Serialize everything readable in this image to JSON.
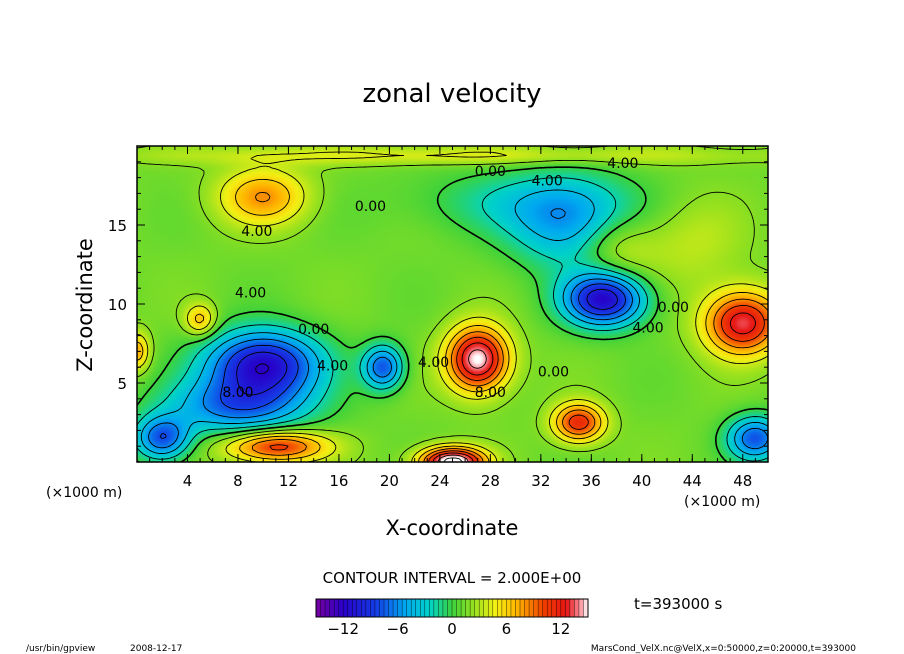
{
  "chart_data": {
    "type": "heatmap",
    "title": "zonal velocity",
    "xlabel": "X-coordinate",
    "ylabel": "Z-coordinate",
    "x_unit_label": "(×1000 m)",
    "y_unit_label": "(×1000 m)",
    "xlim": [
      0,
      50
    ],
    "ylim": [
      0,
      20
    ],
    "x_ticks": [
      4,
      8,
      12,
      16,
      20,
      24,
      28,
      32,
      36,
      40,
      44,
      48
    ],
    "x_tick_labels": [
      "4",
      "8",
      "12",
      "16",
      "20",
      "24",
      "28",
      "32",
      "36",
      "40",
      "44",
      "48"
    ],
    "y_ticks": [
      5,
      10,
      15
    ],
    "y_tick_labels": [
      "5",
      "10",
      "15"
    ],
    "contour_interval_text": "CONTOUR INTERVAL = 2.000E+00",
    "time_text": "t=393000 s",
    "colorbar": {
      "min": -15,
      "max": 15,
      "ticks": [
        -12,
        -6,
        0,
        6,
        12
      ],
      "tick_labels": [
        "−12",
        "−6",
        "0",
        "6",
        "12"
      ]
    },
    "contour_labels": [
      {
        "text": "0.00",
        "x": 28,
        "z": 18.1
      },
      {
        "text": "4.00",
        "x": 38.5,
        "z": 18.6
      },
      {
        "text": "4.00",
        "x": 32.5,
        "z": 17.5
      },
      {
        "text": "0.00",
        "x": 18.5,
        "z": 15.9
      },
      {
        "text": "4.00",
        "x": 9.5,
        "z": 14.3
      },
      {
        "text": "4.00",
        "x": 9,
        "z": 10.4
      },
      {
        "text": "0.00",
        "x": 14,
        "z": 8.1
      },
      {
        "text": "4.00",
        "x": 15.5,
        "z": 5.8
      },
      {
        "text": "8.00",
        "x": 8,
        "z": 4.1
      },
      {
        "text": "4.00",
        "x": 23.5,
        "z": 6
      },
      {
        "text": "0.00",
        "x": 33,
        "z": 5.4
      },
      {
        "text": "8.00",
        "x": 28,
        "z": 4.1
      },
      {
        "text": "0.00",
        "x": 42.5,
        "z": 9.5
      },
      {
        "text": "4.00",
        "x": 40.5,
        "z": 8.2
      }
    ],
    "features": [
      {
        "x": 10,
        "z": 16.8,
        "value": 6.5,
        "sx": 3.5,
        "sz": 1.8
      },
      {
        "x": 5,
        "z": 9.0,
        "value": 5.5,
        "sx": 1.2,
        "sz": 1.0
      },
      {
        "x": 10,
        "z": 6.2,
        "value": -13,
        "sx": 4.5,
        "sz": 2.1
      },
      {
        "x": 8,
        "z": 3.5,
        "value": -8,
        "sx": 5.5,
        "sz": 1.8
      },
      {
        "x": 2,
        "z": 1.5,
        "value": -9,
        "sx": 2.2,
        "sz": 1.4
      },
      {
        "x": 11,
        "z": 1.0,
        "value": 10,
        "sx": 4.0,
        "sz": 1.0
      },
      {
        "x": 19.5,
        "z": 6.0,
        "value": -9,
        "sx": 1.6,
        "sz": 1.4
      },
      {
        "x": 27,
        "z": 6.5,
        "value": 14,
        "sx": 2.4,
        "sz": 2.0
      },
      {
        "x": 25,
        "z": 0.0,
        "value": 16,
        "sx": 2.5,
        "sz": 0.9
      },
      {
        "x": 35,
        "z": 2.5,
        "value": 10,
        "sx": 2.0,
        "sz": 1.2
      },
      {
        "x": 37,
        "z": 10.3,
        "value": -13,
        "sx": 3.2,
        "sz": 1.7
      },
      {
        "x": 34,
        "z": 15.0,
        "value": -6,
        "sx": 4.5,
        "sz": 2.8
      },
      {
        "x": 31,
        "z": 16.5,
        "value": -3,
        "sx": 9.0,
        "sz": 2.0
      },
      {
        "x": 48,
        "z": 8.8,
        "value": 12,
        "sx": 3.0,
        "sz": 2.0
      },
      {
        "x": 49,
        "z": 1.5,
        "value": -9,
        "sx": 2.2,
        "sz": 1.4
      },
      {
        "x": 0,
        "z": 7.0,
        "value": 6,
        "sx": 1.0,
        "sz": 1.2
      },
      {
        "x": 25,
        "z": 19.4,
        "value": 3,
        "sx": 25.0,
        "sz": 0.6
      },
      {
        "x": 38,
        "z": 13.5,
        "value": 3,
        "sx": 3.0,
        "sz": 2.0
      },
      {
        "x": 44,
        "z": 14.0,
        "value": 2,
        "sx": 4.0,
        "sz": 3.0
      }
    ]
  },
  "footer": {
    "program": "/usr/bin/gpview",
    "date": "2008-12-17",
    "source": "MarsCond_VelX.nc@VelX,x=0:50000,z=0:20000,t=393000"
  }
}
